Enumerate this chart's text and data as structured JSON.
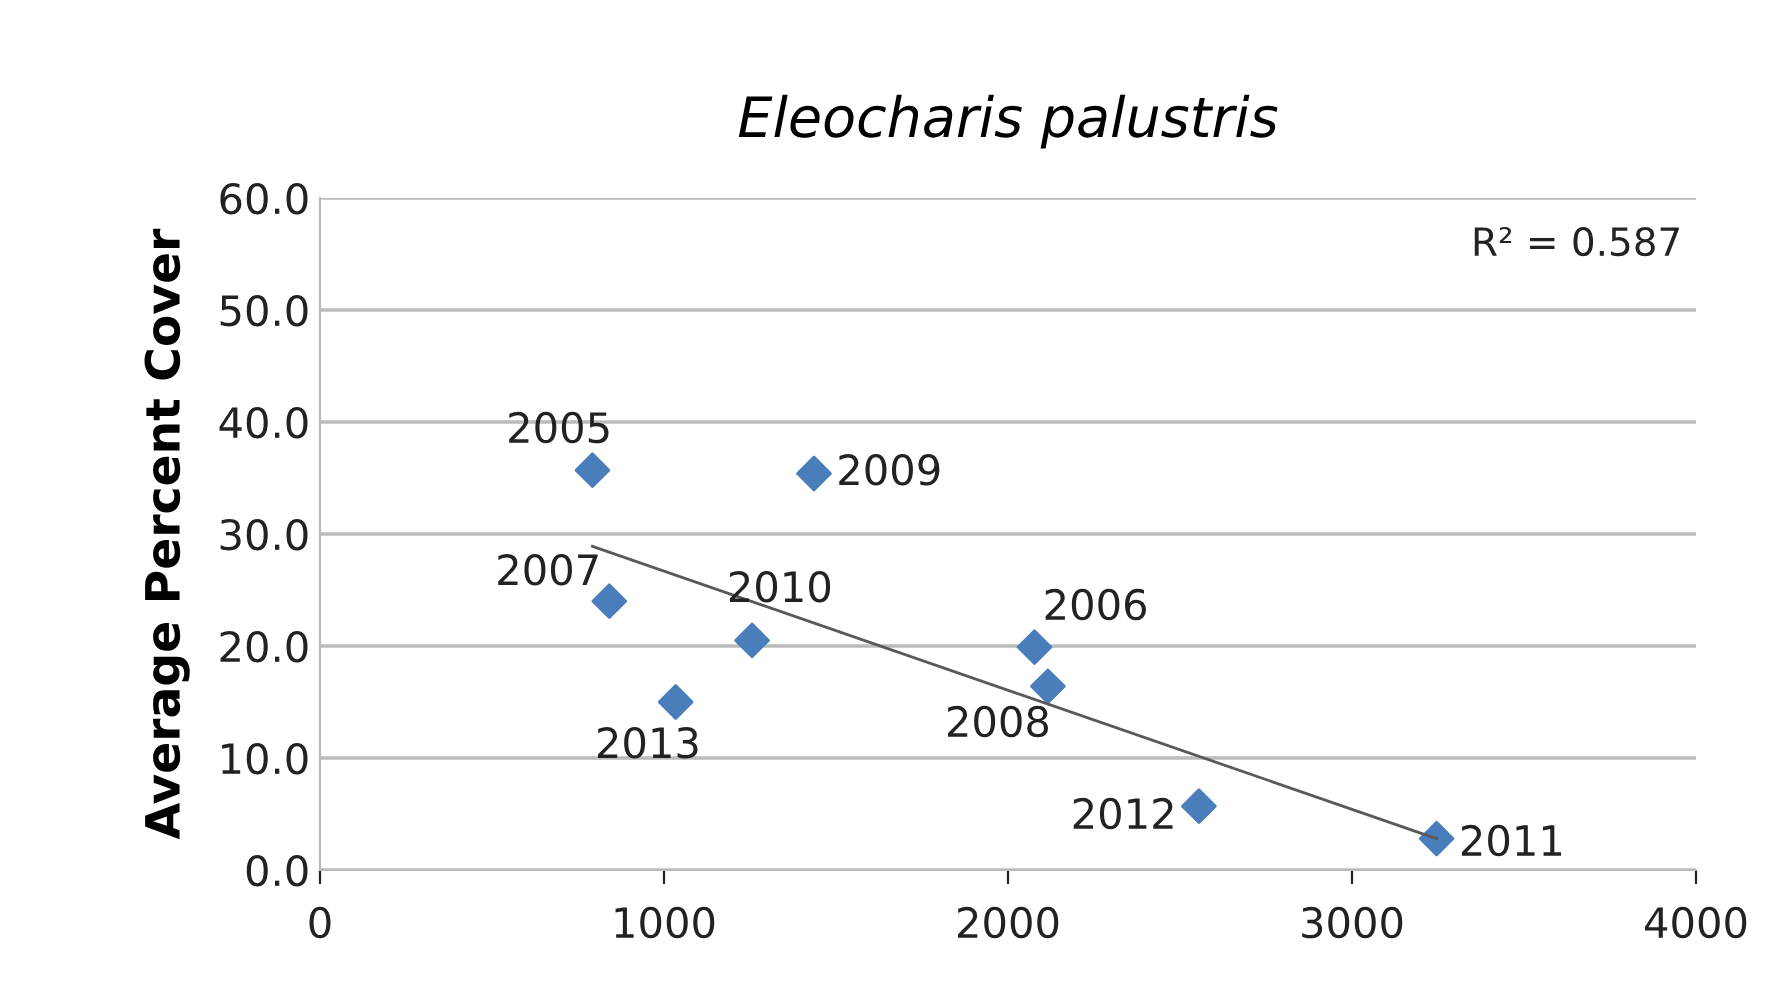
{
  "chart_data": {
    "type": "scatter",
    "title": "Eleocharis palustris",
    "ylabel": "Average Percent Cover",
    "series": [
      {
        "color": "#4a7ebb",
        "marker": "diamond",
        "x": [
          792,
          2077,
          841,
          2116,
          1436,
          1256,
          3246,
          2555,
          1034
        ],
        "values": [
          35.7,
          19.9,
          24.0,
          16.4,
          35.4,
          20.5,
          2.8,
          5.7,
          15.0
        ]
      },
      {
        "type": "line",
        "color": "#595959",
        "marker": "none",
        "x": [
          792,
          3246
        ],
        "values": [
          28.9,
          2.8
        ]
      }
    ],
    "annotations": [
      "R² = 0.587",
      {
        "text": "2005",
        "x": 792,
        "y": 35.7
      },
      {
        "text": "2006",
        "x": 2077,
        "y": 19.9
      },
      {
        "text": "2007",
        "x": 841,
        "y": 24.0
      },
      {
        "text": "2008",
        "x": 2116,
        "y": 16.4
      },
      {
        "text": "2009",
        "x": 1436,
        "y": 35.4
      },
      {
        "text": "2010",
        "x": 1256,
        "y": 20.5
      },
      {
        "text": "2011",
        "x": 3246,
        "y": 2.8
      },
      {
        "text": "2012",
        "x": 2555,
        "y": 5.7
      },
      {
        "text": "2013",
        "x": 1034,
        "y": 15.0
      }
    ],
    "xlim": [
      0,
      4000
    ],
    "xticks": [
      0,
      1000,
      2000,
      3000,
      4000
    ],
    "ylim": [
      0,
      60
    ],
    "yticks": [
      {
        "value": 0,
        "label": "0.0"
      },
      {
        "value": 10,
        "label": "10.0"
      },
      {
        "value": 20,
        "label": "20.0"
      },
      {
        "value": 30,
        "label": "30.0"
      },
      {
        "value": 40,
        "label": "40.0"
      },
      {
        "value": 50,
        "label": "50.0"
      },
      {
        "value": 60,
        "label": "60.0"
      }
    ],
    "grid": "y",
    "legend": false
  }
}
